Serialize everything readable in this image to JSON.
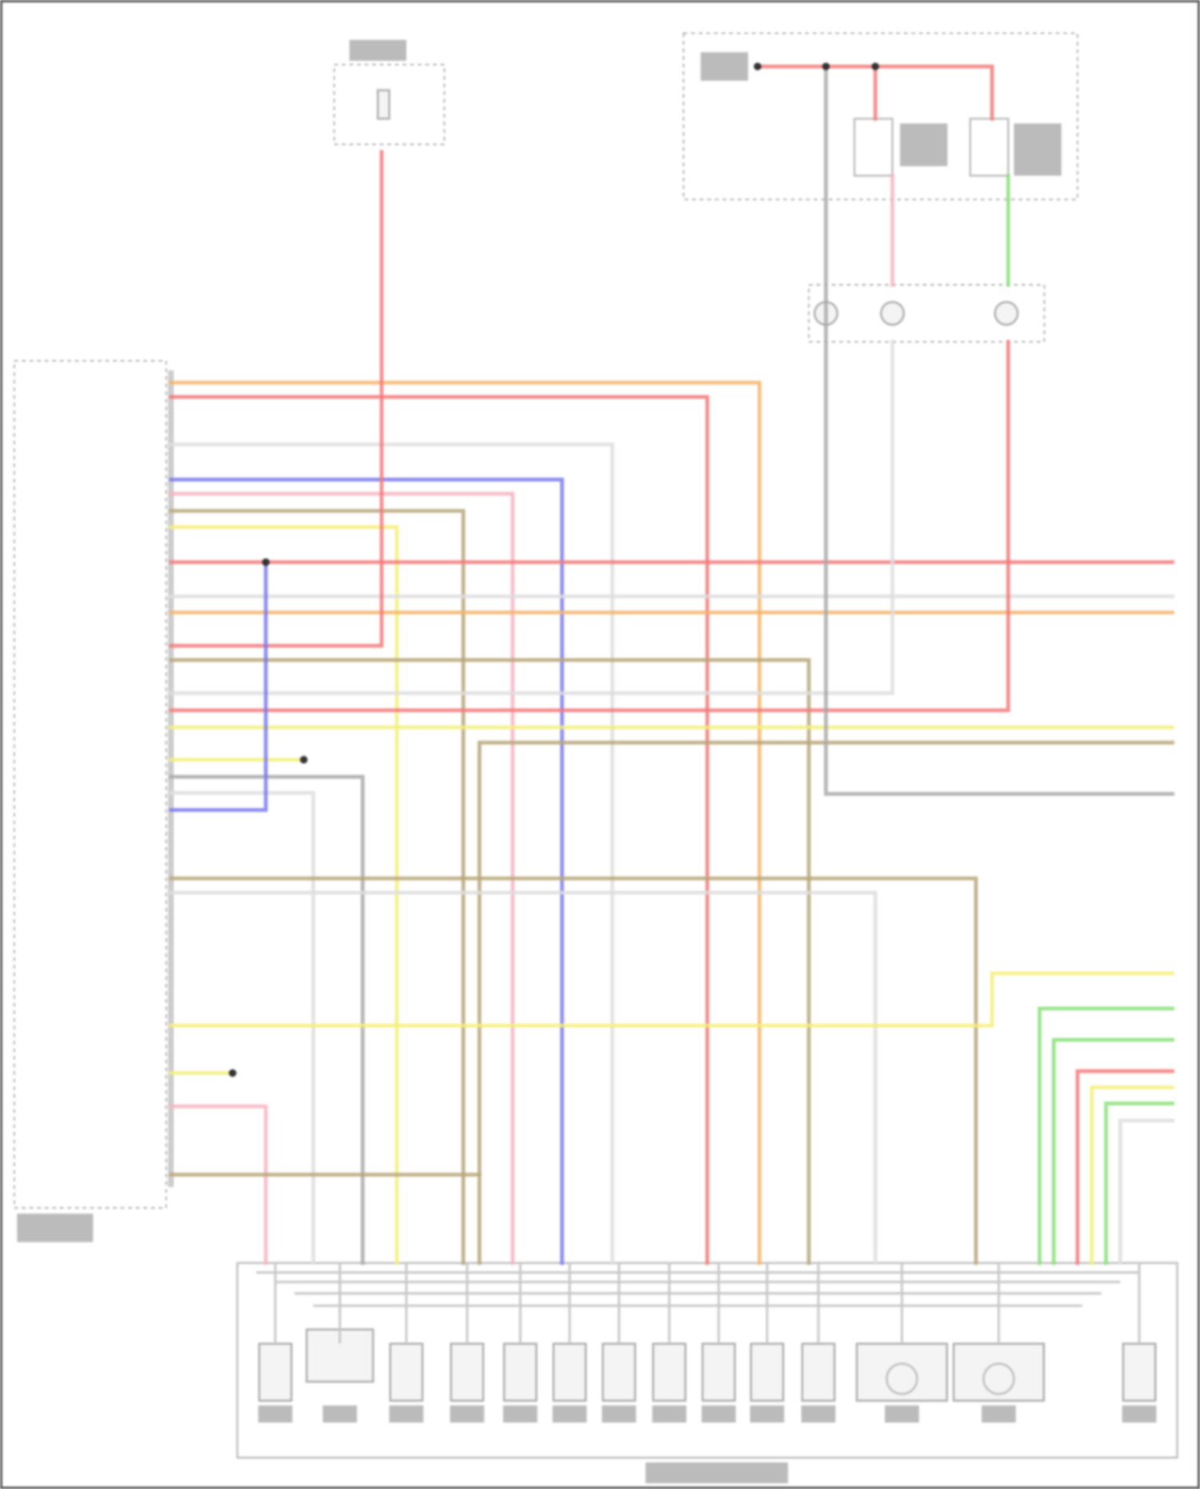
{
  "diagram": {
    "wire_colors": {
      "red": "#f47a7a",
      "orange": "#f7b56b",
      "blue": "#7a7af0",
      "pink": "#f7b4c2",
      "tan": "#b8a77a",
      "yellow": "#f5f07a",
      "gray": "#a9a9a9",
      "light_gray": "#dedede",
      "green": "#8ae07a"
    },
    "frame_color": "#555555"
  }
}
